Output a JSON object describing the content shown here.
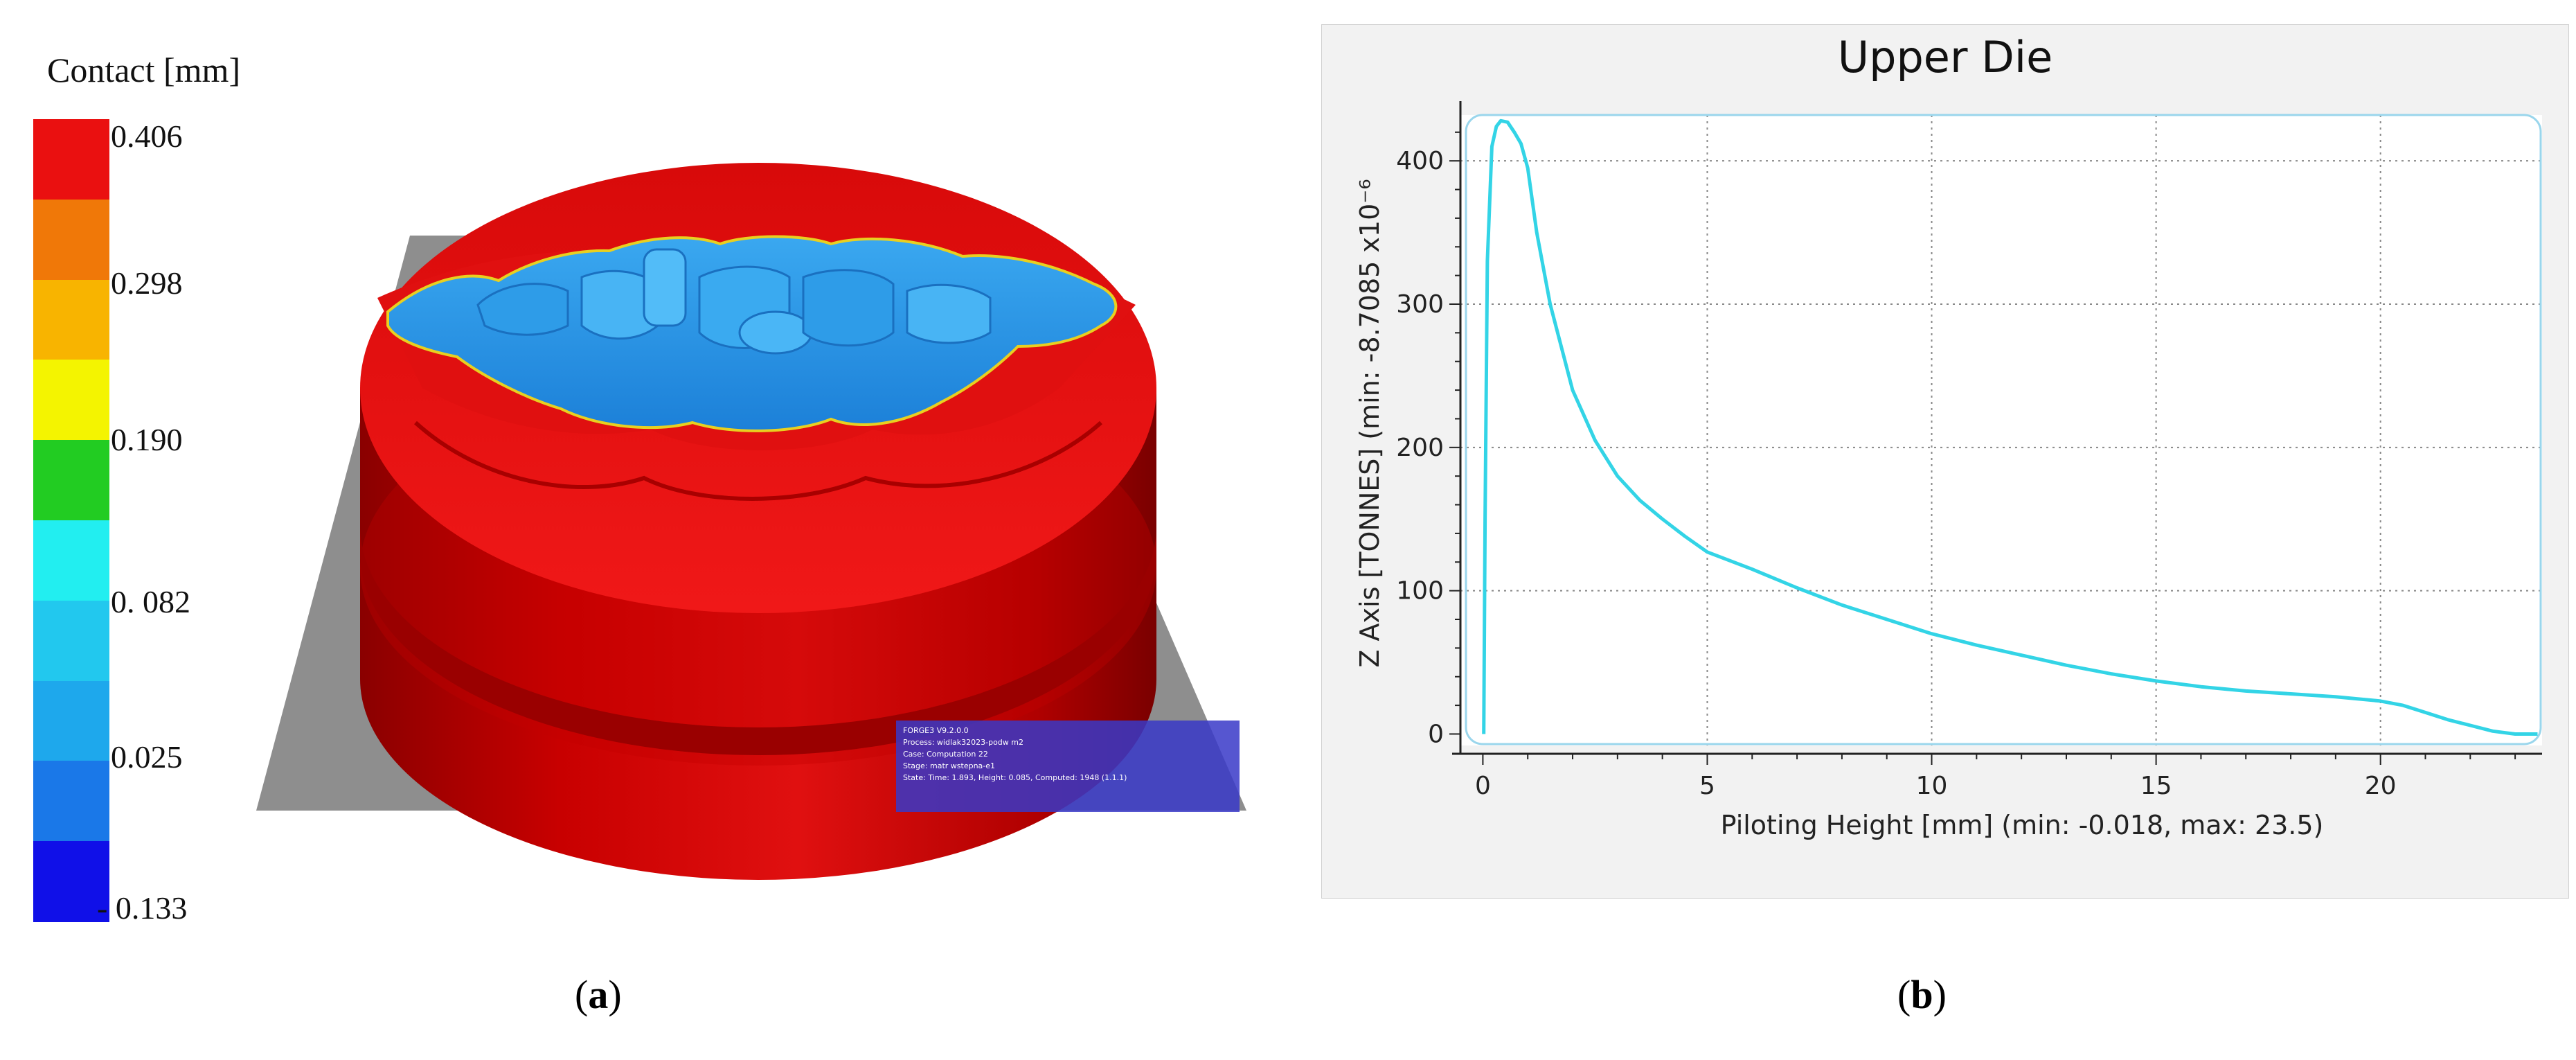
{
  "panel_a": {
    "legend": {
      "title": "Contact [mm]",
      "ticks": [
        "0.406",
        "0.298",
        "0.190",
        "0. 082",
        "0.025",
        "- 0.133"
      ],
      "colors": [
        "#ea1010",
        "#f07808",
        "#f8b400",
        "#f4f400",
        "#22cc22",
        "#22eef0",
        "#22c8ee",
        "#1ea8ec",
        "#1a78e8",
        "#1010e8"
      ]
    },
    "sim_info": {
      "lines": [
        "FORGE3 V9.2.0.0",
        "Process: widlak32023-podw m2",
        "Case:    Computation 22",
        "Stage:   matr wstepna-e1",
        "State:   Time: 1.893, Height: 0.085, Computed: 1948 (1.1.1)"
      ]
    },
    "caption": {
      "open": "(",
      "letter": "a",
      "close": ")"
    }
  },
  "panel_b": {
    "caption": {
      "open": "(",
      "letter": "b",
      "close": ")"
    }
  },
  "chart_data": {
    "type": "line",
    "title": "Upper Die",
    "xlabel": "Piloting Height [mm] (min: -0.018, max: 23.5)",
    "ylabel": "Z Axis [TONNES] (min: -8.7085 x10⁻⁶",
    "xlim": [
      -0.5,
      23.6
    ],
    "ylim": [
      -8,
      432
    ],
    "xticks": [
      0,
      5,
      10,
      15,
      20
    ],
    "yticks": [
      0,
      100,
      200,
      300,
      400
    ],
    "grid": true,
    "series": [
      {
        "color": "#33d4e6",
        "points": [
          [
            0.02,
            0
          ],
          [
            0.05,
            150
          ],
          [
            0.1,
            330
          ],
          [
            0.2,
            410
          ],
          [
            0.3,
            424
          ],
          [
            0.4,
            428
          ],
          [
            0.55,
            427
          ],
          [
            0.7,
            420
          ],
          [
            0.85,
            412
          ],
          [
            1.0,
            395
          ],
          [
            1.2,
            350
          ],
          [
            1.5,
            300
          ],
          [
            2.0,
            240
          ],
          [
            2.5,
            205
          ],
          [
            3.0,
            180
          ],
          [
            3.5,
            163
          ],
          [
            4.0,
            150
          ],
          [
            4.5,
            138
          ],
          [
            5.0,
            127
          ],
          [
            6.0,
            115
          ],
          [
            7.0,
            102
          ],
          [
            8.0,
            90
          ],
          [
            9.0,
            80
          ],
          [
            10.0,
            70
          ],
          [
            11.0,
            62
          ],
          [
            12.0,
            55
          ],
          [
            13.0,
            48
          ],
          [
            14.0,
            42
          ],
          [
            15.0,
            37
          ],
          [
            16.0,
            33
          ],
          [
            17.0,
            30
          ],
          [
            18.0,
            28
          ],
          [
            19.0,
            26
          ],
          [
            20.0,
            23
          ],
          [
            20.5,
            20
          ],
          [
            21.0,
            15
          ],
          [
            21.5,
            10
          ],
          [
            22.0,
            6
          ],
          [
            22.5,
            2
          ],
          [
            23.0,
            0
          ],
          [
            23.5,
            0
          ]
        ]
      }
    ]
  }
}
